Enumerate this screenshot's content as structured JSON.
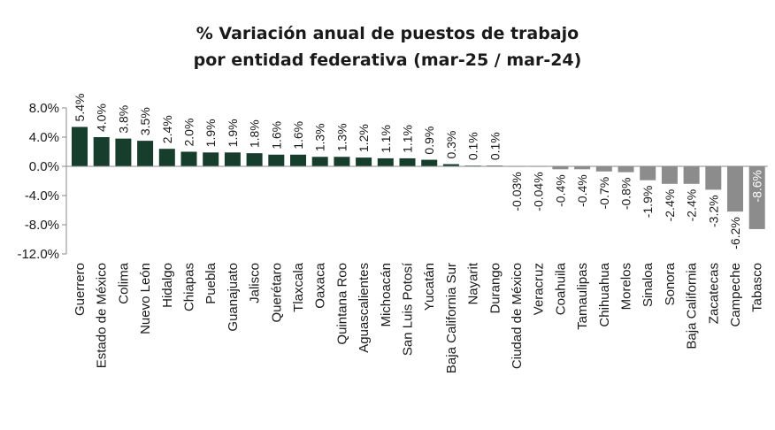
{
  "chart_data": {
    "type": "bar",
    "title_lines": [
      "% Variación anual de puestos de trabajo",
      "por entidad federativa (mar-25 / mar-24)"
    ],
    "categories": [
      "Guerrero",
      "Estado de México",
      "Colima",
      "Nuevo León",
      "Hidalgo",
      "Chiapas",
      "Puebla",
      "Guanajuato",
      "Jalisco",
      "Querétaro",
      "Tlaxcala",
      "Oaxaca",
      "Quintana Roo",
      "Aguascalientes",
      "Michoacán",
      "San Luis Potosí",
      "Yucatán",
      "Baja California Sur",
      "Nayarit",
      "Durango",
      "Ciudad de México",
      "Veracruz",
      "Coahuila",
      "Tamaulipas",
      "Chihuahua",
      "Morelos",
      "Sinaloa",
      "Sonora",
      "Baja California",
      "Zacatecas",
      "Campeche",
      "Tabasco"
    ],
    "values": [
      5.4,
      4.0,
      3.8,
      3.5,
      2.4,
      2.0,
      1.9,
      1.9,
      1.8,
      1.6,
      1.6,
      1.3,
      1.3,
      1.2,
      1.1,
      1.1,
      0.9,
      0.3,
      0.1,
      0.1,
      -0.03,
      -0.04,
      -0.4,
      -0.4,
      -0.7,
      -0.8,
      -1.9,
      -2.4,
      -2.4,
      -3.2,
      -6.2,
      -8.6
    ],
    "data_labels": [
      "5.4%",
      "4.0%",
      "3.8%",
      "3.5%",
      "2.4%",
      "2.0%",
      "1.9%",
      "1.9%",
      "1.8%",
      "1.6%",
      "1.6%",
      "1.3%",
      "1.3%",
      "1.2%",
      "1.1%",
      "1.1%",
      "0.9%",
      "0.3%",
      "0.1%",
      "0.1%",
      "-0.03%",
      "-0.04%",
      "-0.4%",
      "-0.4%",
      "-0.7%",
      "-0.8%",
      "-1.9%",
      "-2.4%",
      "-2.4%",
      "-3.2%",
      "-6.2%",
      "-8.6%"
    ],
    "ylim": [
      -12,
      8
    ],
    "yticks": [
      8,
      4,
      0,
      -4,
      -8,
      -12
    ],
    "ytick_labels": [
      "8.0%",
      "4.0%",
      "0.0%",
      "-4.0%",
      "-8.0%",
      "-12.0%"
    ],
    "colors": {
      "positive": "#173d2c",
      "negative": "#8c8c8c",
      "axis": "#8a8a8a"
    },
    "grid": false,
    "legend": "none"
  }
}
